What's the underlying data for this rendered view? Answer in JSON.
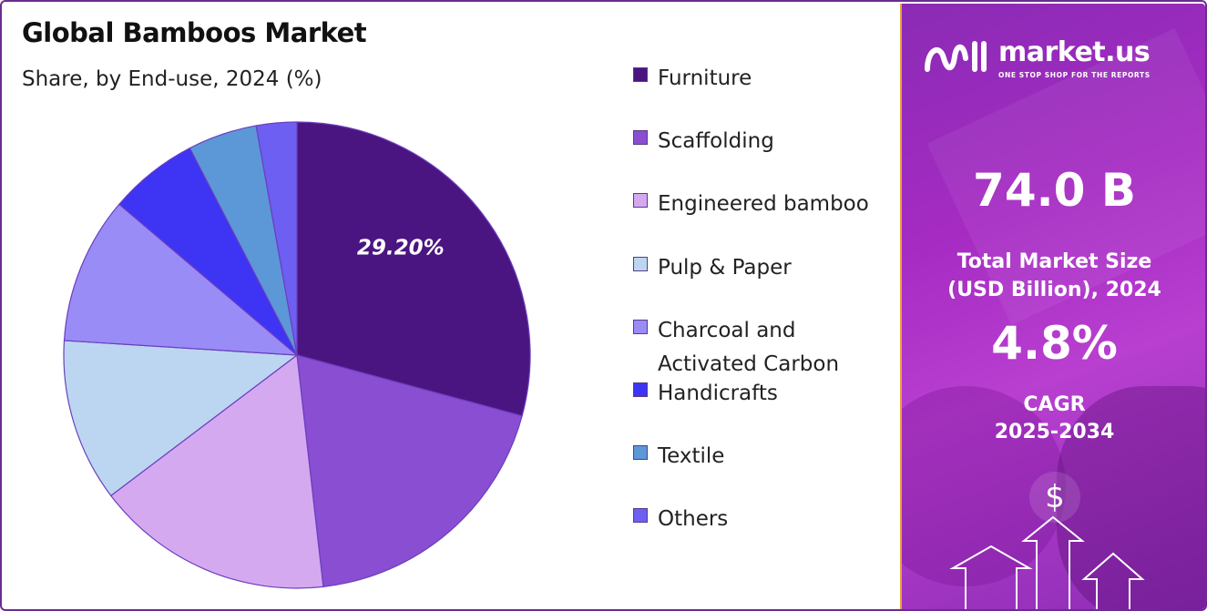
{
  "header": {
    "title": "Global Bamboos Market",
    "subtitle": "Share, by End-use, 2024 (%)"
  },
  "chart_data": {
    "type": "pie",
    "categories": [
      "Furniture",
      "Scaffolding",
      "Engineered bamboo",
      "Pulp & Paper",
      "Charcoal and Activated Carbon",
      "Handicrafts",
      "Textile",
      "Others"
    ],
    "values": [
      29.2,
      19.0,
      16.5,
      11.3,
      10.2,
      6.2,
      4.8,
      2.8
    ],
    "colors": [
      "#4b1581",
      "#8a4ed2",
      "#d4a9f0",
      "#bcd6f1",
      "#9a8cf6",
      "#3e34f4",
      "#5c97d8",
      "#6c5ff2"
    ],
    "data_labels": [
      "29.20%",
      "",
      "",
      "",
      "",
      "",
      "",
      ""
    ],
    "start_angle_deg": 0,
    "direction": "clockwise",
    "legend_position": "right"
  },
  "legend": {
    "items": [
      {
        "label": "Furniture"
      },
      {
        "label": "Scaffolding"
      },
      {
        "label": "Engineered bamboo"
      },
      {
        "label": "Pulp & Paper"
      },
      {
        "label": "Charcoal and Activated Carbon"
      },
      {
        "label": "Handicrafts"
      },
      {
        "label": "Textile"
      },
      {
        "label": "Others"
      }
    ]
  },
  "panel": {
    "brand": "market.us",
    "tagline": "ONE STOP SHOP FOR THE REPORTS",
    "market_size": "74.0 B",
    "market_size_label_1": "Total Market Size",
    "market_size_label_2": "(USD Billion), 2024",
    "cagr": "4.8%",
    "cagr_label_1": "CAGR",
    "cagr_label_2": "2025-2034",
    "dollar_symbol": "$",
    "accent_color": "#a62bc3"
  }
}
